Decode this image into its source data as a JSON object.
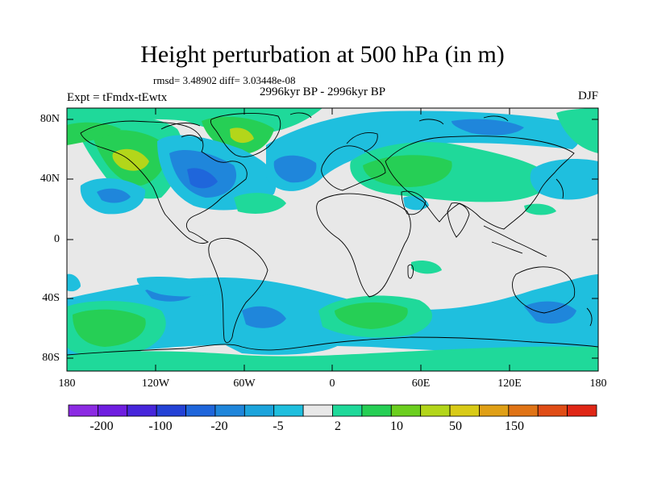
{
  "title": "Height perturbation at 500 hPa (in m)",
  "stats": "rmsd= 3.48902 diff= 3.03448e-08",
  "experiment": "Expt = tFmdx-tEwtx",
  "period": "2996kyr BP - 2996kyr BP",
  "season": "DJF",
  "lat_labels": [
    "80N",
    "40N",
    "0",
    "40S",
    "80S"
  ],
  "lon_labels": [
    "180",
    "120W",
    "60W",
    "0",
    "60E",
    "120E",
    "180"
  ],
  "colorbar": {
    "colors": [
      "#8c2be3",
      "#6f1ee0",
      "#4726db",
      "#2442d6",
      "#1f66db",
      "#1f86db",
      "#1ca4dc",
      "#1fbfde",
      "#e8e8e8",
      "#1fd99a",
      "#26cf55",
      "#6ccf1f",
      "#b3d61a",
      "#d9cb17",
      "#e0a016",
      "#e07416",
      "#e04d16",
      "#e02716"
    ],
    "labels": [
      "-200",
      "-100",
      "-20",
      "-5",
      "2",
      "10",
      "50",
      "150"
    ]
  },
  "fill_colors": {
    "background": "#e8e8e8",
    "blue_light": "#1fbfde",
    "blue_mid": "#1f86db",
    "blue_dark": "#1f66db",
    "green_light": "#1fd99a",
    "green_mid": "#26cf55",
    "yellow_green": "#b3d61a"
  }
}
